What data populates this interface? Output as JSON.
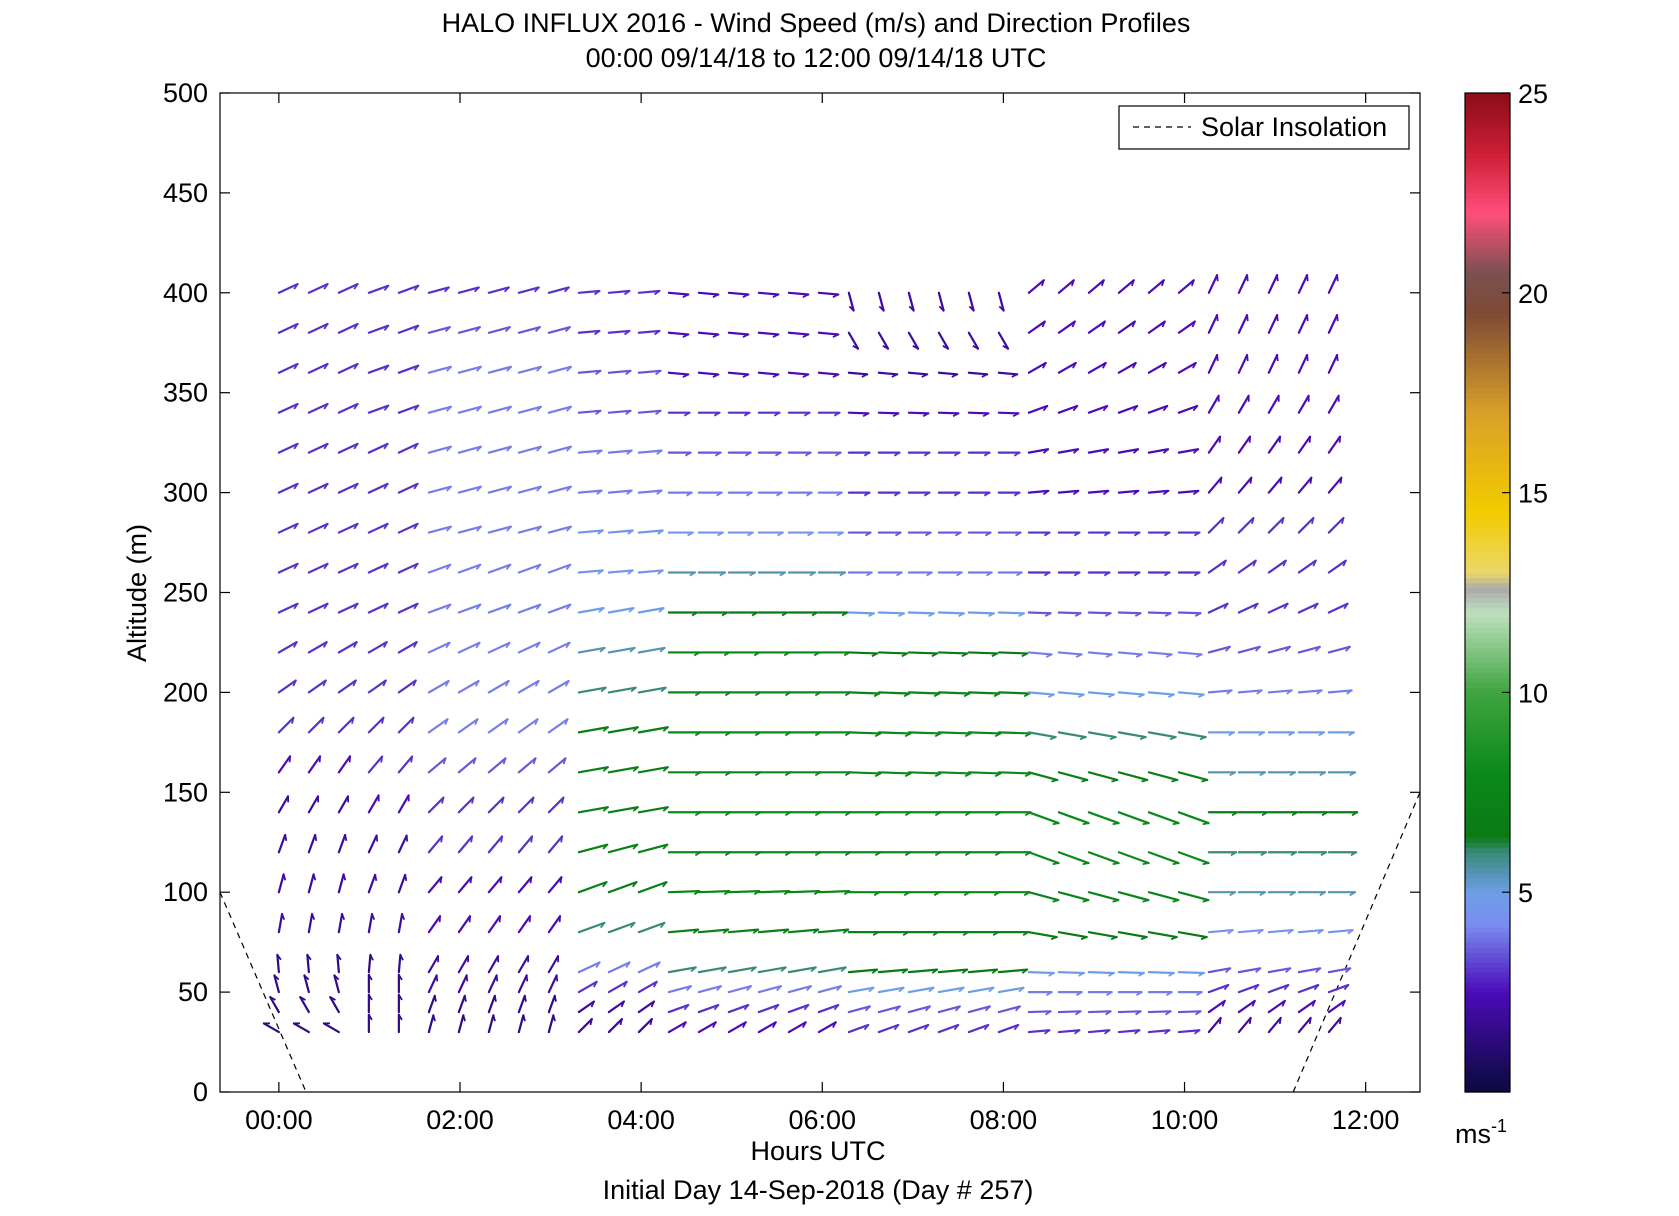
{
  "chart_data": {
    "type": "wind-barb-profile",
    "title": "HALO INFLUX 2016 - Wind Speed (m/s) and Direction Profiles",
    "subtitle": "00:00 09/14/18 to 12:00 09/14/18  UTC",
    "xlabel": "Hours UTC",
    "footer": "Initial Day 14-Sep-2018 (Day # 257)",
    "ylabel": "Altitude (m)",
    "xlim_hours": [
      -0.65,
      12.6
    ],
    "ylim": [
      0,
      500
    ],
    "x_ticks": [
      {
        "value": 0,
        "label": "00:00"
      },
      {
        "value": 2,
        "label": "02:00"
      },
      {
        "value": 4,
        "label": "04:00"
      },
      {
        "value": 6,
        "label": "06:00"
      },
      {
        "value": 8,
        "label": "08:00"
      },
      {
        "value": 10,
        "label": "10:00"
      },
      {
        "value": 12,
        "label": "12:00"
      }
    ],
    "y_ticks": [
      {
        "value": 0,
        "label": "0"
      },
      {
        "value": 50,
        "label": "50"
      },
      {
        "value": 100,
        "label": "100"
      },
      {
        "value": 150,
        "label": "150"
      },
      {
        "value": 200,
        "label": "200"
      },
      {
        "value": 250,
        "label": "250"
      },
      {
        "value": 300,
        "label": "300"
      },
      {
        "value": 350,
        "label": "350"
      },
      {
        "value": 400,
        "label": "400"
      },
      {
        "value": 450,
        "label": "450"
      },
      {
        "value": 500,
        "label": "500"
      }
    ],
    "colorbar": {
      "range": [
        0,
        25
      ],
      "ticks": [
        {
          "value": 5,
          "label": "5"
        },
        {
          "value": 10,
          "label": "10"
        },
        {
          "value": 15,
          "label": "15"
        },
        {
          "value": 20,
          "label": "20"
        },
        {
          "value": 25,
          "label": "25"
        }
      ],
      "unit_base": "ms",
      "unit_exp": "-1",
      "stops": [
        {
          "v": 0,
          "color": "#0a0a3c"
        },
        {
          "v": 2.5,
          "color": "#4b0bb8"
        },
        {
          "v": 4.2,
          "color": "#7b8cf0"
        },
        {
          "v": 5,
          "color": "#6e9ee8"
        },
        {
          "v": 6,
          "color": "#3a8a7a"
        },
        {
          "v": 6.4,
          "color": "#0a7a14"
        },
        {
          "v": 8,
          "color": "#0b8a1a"
        },
        {
          "v": 10,
          "color": "#3fa43f"
        },
        {
          "v": 12,
          "color": "#bfe0bf"
        },
        {
          "v": 12.6,
          "color": "#aaaaaa"
        },
        {
          "v": 13,
          "color": "#ead76a"
        },
        {
          "v": 14.5,
          "color": "#f3cc00"
        },
        {
          "v": 17,
          "color": "#d9a02a"
        },
        {
          "v": 19.5,
          "color": "#7e4a34"
        },
        {
          "v": 20.5,
          "color": "#7a5050"
        },
        {
          "v": 22,
          "color": "#ff4f7a"
        },
        {
          "v": 23.5,
          "color": "#cc1f36"
        },
        {
          "v": 25,
          "color": "#8b0d18"
        }
      ]
    },
    "legend": {
      "label": "Solar Insolation",
      "position": "top-right",
      "style": "dashed-black"
    },
    "solar_insolation": {
      "points": [
        {
          "hour": -0.65,
          "altitude": 100
        },
        {
          "hour": 0.3,
          "altitude": 0
        },
        {
          "hour": 11.2,
          "altitude": 0
        },
        {
          "hour": 12.6,
          "altitude": 150
        }
      ]
    },
    "wind": {
      "altitudes": [
        30,
        40,
        50,
        60,
        80,
        100,
        120,
        140,
        160,
        180,
        200,
        220,
        240,
        260,
        280,
        300,
        320,
        340,
        360,
        380,
        400
      ],
      "segments": [
        {
          "t0": 0.0,
          "t1": 0.75,
          "by_alt": [
            [
              30,
              300,
              1.5
            ],
            [
              40,
              330,
              1.5
            ],
            [
              50,
              345,
              1.5
            ],
            [
              60,
              355,
              1.5
            ],
            [
              80,
              10,
              2
            ],
            [
              100,
              15,
              2
            ],
            [
              120,
              20,
              2
            ],
            [
              140,
              30,
              2
            ],
            [
              160,
              35,
              2.5
            ],
            [
              180,
              45,
              3
            ],
            [
              200,
              55,
              3
            ],
            [
              220,
              60,
              3
            ],
            [
              240,
              65,
              3
            ],
            [
              260,
              65,
              3
            ],
            [
              280,
              65,
              3
            ],
            [
              300,
              65,
              3
            ],
            [
              320,
              65,
              3
            ],
            [
              340,
              65,
              3
            ],
            [
              360,
              65,
              3
            ],
            [
              380,
              65,
              3
            ],
            [
              400,
              65,
              3
            ]
          ]
        },
        {
          "t0": 0.75,
          "t1": 1.5,
          "by_alt": [
            [
              30,
              0,
              1.5
            ],
            [
              40,
              0,
              1.5
            ],
            [
              50,
              0,
              1.5
            ],
            [
              60,
              5,
              1.5
            ],
            [
              80,
              10,
              2
            ],
            [
              100,
              20,
              2
            ],
            [
              120,
              25,
              2
            ],
            [
              140,
              30,
              2.5
            ],
            [
              160,
              40,
              3
            ],
            [
              180,
              45,
              3
            ],
            [
              200,
              55,
              3
            ],
            [
              220,
              60,
              3
            ],
            [
              240,
              65,
              3
            ],
            [
              260,
              65,
              3
            ],
            [
              280,
              65,
              3
            ],
            [
              300,
              65,
              3
            ],
            [
              320,
              65,
              3
            ],
            [
              340,
              70,
              3
            ],
            [
              360,
              70,
              3
            ],
            [
              380,
              70,
              3
            ],
            [
              400,
              70,
              3
            ]
          ]
        },
        {
          "t0": 1.5,
          "t1": 3.0,
          "by_alt": [
            [
              30,
              15,
              1.5
            ],
            [
              40,
              20,
              1.5
            ],
            [
              50,
              25,
              2
            ],
            [
              60,
              30,
              2
            ],
            [
              80,
              35,
              2.5
            ],
            [
              100,
              40,
              2.5
            ],
            [
              120,
              40,
              3
            ],
            [
              140,
              45,
              3
            ],
            [
              160,
              50,
              3.5
            ],
            [
              180,
              55,
              4
            ],
            [
              200,
              60,
              4
            ],
            [
              220,
              65,
              4
            ],
            [
              240,
              70,
              4
            ],
            [
              260,
              70,
              4
            ],
            [
              280,
              75,
              4
            ],
            [
              300,
              75,
              4
            ],
            [
              320,
              75,
              4
            ],
            [
              340,
              75,
              4
            ],
            [
              360,
              75,
              4
            ],
            [
              380,
              75,
              3.5
            ],
            [
              400,
              75,
              3
            ]
          ]
        },
        {
          "t0": 3.0,
          "t1": 4.0,
          "by_alt": [
            [
              30,
              45,
              2
            ],
            [
              40,
              55,
              2
            ],
            [
              50,
              60,
              3
            ],
            [
              60,
              65,
              4
            ],
            [
              80,
              70,
              6
            ],
            [
              100,
              70,
              7
            ],
            [
              120,
              75,
              7
            ],
            [
              140,
              80,
              7
            ],
            [
              160,
              80,
              7
            ],
            [
              180,
              80,
              7
            ],
            [
              200,
              80,
              6
            ],
            [
              220,
              80,
              5.5
            ],
            [
              240,
              80,
              5
            ],
            [
              260,
              85,
              4.5
            ],
            [
              280,
              85,
              4.5
            ],
            [
              300,
              85,
              4
            ],
            [
              320,
              85,
              4
            ],
            [
              340,
              85,
              3.5
            ],
            [
              360,
              85,
              3.5
            ],
            [
              380,
              85,
              3
            ],
            [
              400,
              85,
              3
            ]
          ]
        },
        {
          "t0": 4.0,
          "t1": 6.0,
          "by_alt": [
            [
              30,
              60,
              2.5
            ],
            [
              40,
              70,
              3
            ],
            [
              50,
              75,
              4
            ],
            [
              60,
              80,
              6
            ],
            [
              80,
              85,
              7
            ],
            [
              100,
              88,
              7.5
            ],
            [
              120,
              90,
              8
            ],
            [
              140,
              90,
              8
            ],
            [
              160,
              90,
              8
            ],
            [
              180,
              90,
              8
            ],
            [
              200,
              90,
              8
            ],
            [
              220,
              90,
              7.5
            ],
            [
              240,
              90,
              6.5
            ],
            [
              260,
              90,
              5.5
            ],
            [
              280,
              90,
              4.5
            ],
            [
              300,
              90,
              4
            ],
            [
              320,
              90,
              3.5
            ],
            [
              340,
              90,
              3
            ],
            [
              360,
              95,
              2.5
            ],
            [
              380,
              95,
              2.5
            ],
            [
              400,
              95,
              2.5
            ]
          ]
        },
        {
          "t0": 6.0,
          "t1": 8.0,
          "by_alt": [
            [
              30,
              70,
              3
            ],
            [
              40,
              75,
              3.5
            ],
            [
              50,
              80,
              5
            ],
            [
              60,
              85,
              6.5
            ],
            [
              80,
              90,
              7
            ],
            [
              100,
              90,
              7.5
            ],
            [
              120,
              90,
              8
            ],
            [
              140,
              90,
              8
            ],
            [
              160,
              92,
              8
            ],
            [
              180,
              92,
              8
            ],
            [
              200,
              92,
              7.5
            ],
            [
              220,
              92,
              6.5
            ],
            [
              240,
              92,
              5
            ],
            [
              260,
              90,
              4
            ],
            [
              280,
              90,
              3.5
            ],
            [
              300,
              90,
              3
            ],
            [
              320,
              90,
              3
            ],
            [
              340,
              92,
              2.5
            ],
            [
              360,
              95,
              2
            ],
            [
              380,
              150,
              2
            ],
            [
              400,
              165,
              2
            ]
          ]
        },
        {
          "t0": 8.0,
          "t1": 10.0,
          "by_alt": [
            [
              30,
              85,
              3
            ],
            [
              40,
              88,
              3.5
            ],
            [
              50,
              90,
              4
            ],
            [
              60,
              92,
              5
            ],
            [
              80,
              100,
              6.5
            ],
            [
              100,
              105,
              7.5
            ],
            [
              120,
              110,
              8
            ],
            [
              140,
              110,
              8
            ],
            [
              160,
              105,
              7
            ],
            [
              180,
              100,
              6
            ],
            [
              200,
              95,
              5
            ],
            [
              220,
              95,
              4
            ],
            [
              240,
              92,
              3.5
            ],
            [
              260,
              90,
              3
            ],
            [
              280,
              90,
              3
            ],
            [
              300,
              85,
              2.5
            ],
            [
              320,
              80,
              2.5
            ],
            [
              340,
              70,
              2.5
            ],
            [
              360,
              60,
              2.5
            ],
            [
              380,
              55,
              2.5
            ],
            [
              400,
              50,
              2.5
            ]
          ]
        },
        {
          "t0": 10.0,
          "t1": 11.9,
          "by_alt": [
            [
              30,
              40,
              2
            ],
            [
              40,
              55,
              2.5
            ],
            [
              50,
              70,
              3
            ],
            [
              60,
              80,
              3.5
            ],
            [
              80,
              85,
              4.5
            ],
            [
              100,
              90,
              5.5
            ],
            [
              120,
              90,
              6
            ],
            [
              140,
              90,
              6.5
            ],
            [
              160,
              90,
              5.5
            ],
            [
              180,
              90,
              5
            ],
            [
              200,
              85,
              4
            ],
            [
              220,
              75,
              3.5
            ],
            [
              240,
              65,
              3
            ],
            [
              260,
              55,
              3
            ],
            [
              280,
              45,
              3
            ],
            [
              300,
              40,
              2.5
            ],
            [
              320,
              35,
              2.5
            ],
            [
              340,
              30,
              2.5
            ],
            [
              360,
              25,
              2.5
            ],
            [
              380,
              25,
              2.5
            ],
            [
              400,
              25,
              2.5
            ]
          ]
        }
      ]
    }
  }
}
